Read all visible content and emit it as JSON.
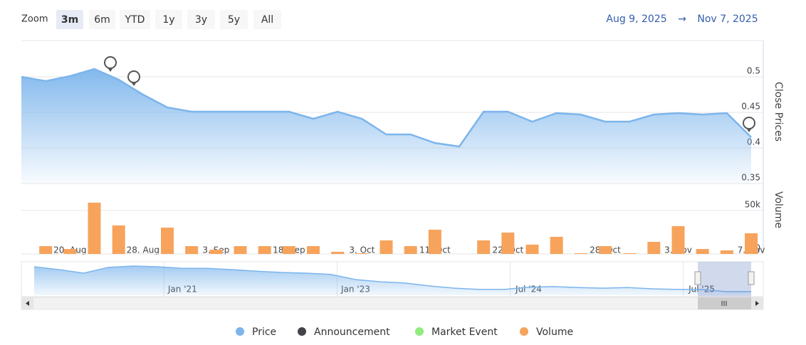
{
  "zoom": {
    "label": "Zoom",
    "buttons": [
      "3m",
      "6m",
      "YTD",
      "1y",
      "3y",
      "5y",
      "All"
    ],
    "selected": 0
  },
  "date_range": {
    "from": "Aug 9, 2025",
    "arrow": "→",
    "to": "Nov 7, 2025"
  },
  "legend": [
    {
      "name": "Price",
      "color": "#7cb5ec"
    },
    {
      "name": "Announcement",
      "color": "#434348"
    },
    {
      "name": "Market Event",
      "color": "#90ed7d"
    },
    {
      "name": "Volume",
      "color": "#f7a35c"
    }
  ],
  "chart_data": [
    {
      "type": "area",
      "y_title": "Close Prices",
      "categories": [
        null,
        null,
        "20. Aug",
        null,
        null,
        "28. Aug",
        null,
        null,
        "3. Sep",
        null,
        null,
        "18. Sep",
        null,
        null,
        "3. Oct",
        null,
        null,
        "11. Oct",
        null,
        null,
        "22. Oct",
        null,
        null,
        null,
        "28. Oct",
        null,
        null,
        "3. Nov",
        null,
        null,
        "7. Nov"
      ],
      "series": [
        {
          "name": "Price",
          "color": "#7cb5ec",
          "values": [
            0.5,
            0.494,
            0.501,
            0.511,
            0.496,
            0.475,
            0.457,
            0.451,
            0.451,
            0.451,
            0.451,
            0.451,
            0.441,
            0.451,
            0.441,
            0.419,
            0.419,
            0.407,
            0.402,
            0.451,
            0.451,
            0.437,
            0.449,
            0.447,
            0.437,
            0.437,
            0.447,
            0.449,
            0.447,
            0.449,
            0.415
          ]
        }
      ],
      "ylim": [
        0.35,
        0.55
      ],
      "yticks": [
        0.35,
        0.4,
        0.45,
        0.5
      ],
      "grid": true
    },
    {
      "type": "bar",
      "y_title": "Volume",
      "series": [
        {
          "name": "Volume",
          "color": "#f7a35c",
          "values": [
            null,
            9000,
            5700,
            59000,
            32800,
            null,
            30300,
            9000,
            4900,
            9000,
            9000,
            9000,
            9000,
            2500,
            800,
            15600,
            9000,
            27900,
            null,
            15600,
            24600,
            10700,
            19700,
            800,
            9000,
            800,
            13900,
            32000,
            5700,
            4100,
            23800
          ]
        }
      ],
      "ylim": [
        0,
        81000
      ],
      "yticks": [
        0,
        {
          "value": 50000,
          "label": "50k"
        }
      ],
      "grid": true
    },
    {
      "type": "line",
      "categories": [
        null,
        null,
        null,
        null,
        null,
        null,
        "Jan '21",
        null,
        null,
        null,
        null,
        null,
        null,
        "Jan '23",
        null,
        null,
        null,
        null,
        null,
        null,
        "Jul '24",
        null,
        null,
        null,
        null,
        null,
        null,
        "Jul '25",
        null,
        null
      ],
      "series": [
        {
          "color": "#7cb5ec",
          "values": [
            1.19,
            1.1,
            0.99,
            1.17,
            1.21,
            1.19,
            1.14,
            1.14,
            1.1,
            1.05,
            1.01,
            0.99,
            0.95,
            0.79,
            0.72,
            0.68,
            0.59,
            0.52,
            0.48,
            0.48,
            0.55,
            0.57,
            0.54,
            0.52,
            0.54,
            0.5,
            0.48,
            0.48,
            0.41,
            0.41
          ]
        }
      ],
      "ylim": [
        0.3,
        1.3
      ]
    }
  ]
}
